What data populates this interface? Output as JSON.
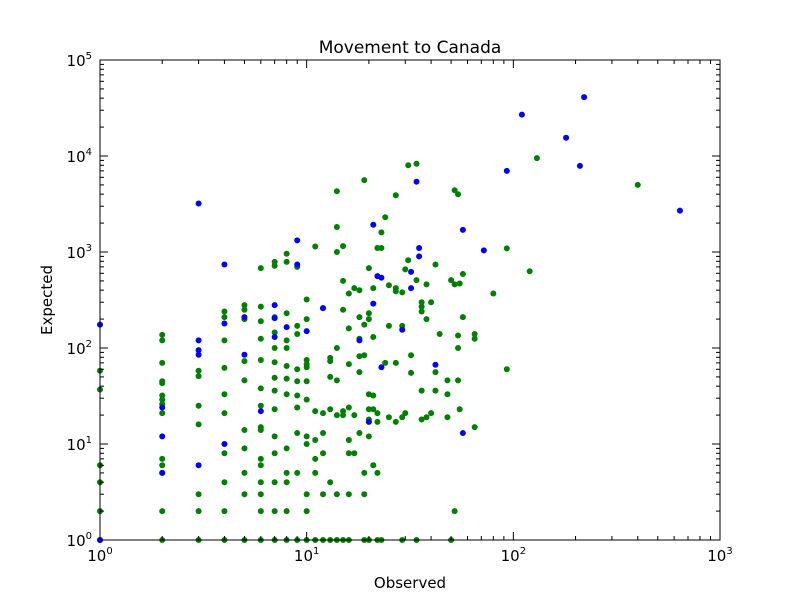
{
  "chart_data": {
    "type": "scatter",
    "title": "Movement to Canada",
    "xlabel": "Observed",
    "ylabel": "Expected",
    "xscale": "log",
    "yscale": "log",
    "xlim": [
      1,
      1000
    ],
    "ylim": [
      1,
      100000
    ],
    "grid": false,
    "legend": "none",
    "x_ticks": [
      {
        "value": 1,
        "base": "10",
        "exp": "0"
      },
      {
        "value": 10,
        "base": "10",
        "exp": "1"
      },
      {
        "value": 100,
        "base": "10",
        "exp": "2"
      },
      {
        "value": 1000,
        "base": "10",
        "exp": "3"
      }
    ],
    "y_ticks": [
      {
        "value": 1,
        "base": "10",
        "exp": "0"
      },
      {
        "value": 10,
        "base": "10",
        "exp": "1"
      },
      {
        "value": 100,
        "base": "10",
        "exp": "2"
      },
      {
        "value": 1000,
        "base": "10",
        "exp": "3"
      },
      {
        "value": 10000,
        "base": "10",
        "exp": "4"
      },
      {
        "value": 100000,
        "base": "10",
        "exp": "5"
      }
    ],
    "series": [
      {
        "color": "#008000",
        "points": [
          [
            1,
            1
          ],
          [
            1,
            2
          ],
          [
            1,
            4
          ],
          [
            1,
            6
          ],
          [
            1,
            37
          ],
          [
            1,
            58
          ],
          [
            2,
            1
          ],
          [
            2,
            2
          ],
          [
            2,
            5
          ],
          [
            2,
            6
          ],
          [
            2,
            7
          ],
          [
            2,
            21
          ],
          [
            2,
            26
          ],
          [
            2,
            29
          ],
          [
            2,
            32
          ],
          [
            2,
            43
          ],
          [
            2,
            45
          ],
          [
            2,
            70
          ],
          [
            2,
            120
          ],
          [
            2,
            137
          ],
          [
            3,
            1
          ],
          [
            3,
            2
          ],
          [
            3,
            3
          ],
          [
            3,
            16
          ],
          [
            3,
            25
          ],
          [
            3,
            51
          ],
          [
            3,
            58
          ],
          [
            4,
            1
          ],
          [
            4,
            2
          ],
          [
            4,
            4
          ],
          [
            4,
            8
          ],
          [
            4,
            21
          ],
          [
            4,
            33
          ],
          [
            4,
            62
          ],
          [
            4,
            120
          ],
          [
            4,
            210
          ],
          [
            4,
            240
          ],
          [
            5,
            1
          ],
          [
            5,
            3
          ],
          [
            5,
            5
          ],
          [
            5,
            9
          ],
          [
            5,
            14
          ],
          [
            5,
            46
          ],
          [
            5,
            73
          ],
          [
            5,
            200
          ],
          [
            5,
            250
          ],
          [
            5,
            280
          ],
          [
            6,
            1
          ],
          [
            6,
            2
          ],
          [
            6,
            3
          ],
          [
            6,
            4
          ],
          [
            6,
            6
          ],
          [
            6,
            7
          ],
          [
            6,
            14
          ],
          [
            6,
            15
          ],
          [
            6,
            25
          ],
          [
            6,
            38
          ],
          [
            6,
            75
          ],
          [
            6,
            125
          ],
          [
            6,
            190
          ],
          [
            6,
            270
          ],
          [
            6,
            680
          ],
          [
            7,
            1
          ],
          [
            7,
            2
          ],
          [
            7,
            4
          ],
          [
            7,
            8
          ],
          [
            7,
            12
          ],
          [
            7,
            23
          ],
          [
            7,
            36
          ],
          [
            7,
            49
          ],
          [
            7,
            71
          ],
          [
            7,
            100
          ],
          [
            7,
            145
          ],
          [
            7,
            210
          ],
          [
            7,
            720
          ],
          [
            7,
            790
          ],
          [
            8,
            1
          ],
          [
            8,
            2
          ],
          [
            8,
            4
          ],
          [
            8,
            5
          ],
          [
            8,
            9
          ],
          [
            8,
            33
          ],
          [
            8,
            48
          ],
          [
            8,
            65
          ],
          [
            8,
            100
          ],
          [
            8,
            120
          ],
          [
            8,
            230
          ],
          [
            8,
            790
          ],
          [
            8,
            960
          ],
          [
            9,
            1
          ],
          [
            9,
            5
          ],
          [
            9,
            13
          ],
          [
            9,
            24
          ],
          [
            9,
            32
          ],
          [
            9,
            45
          ],
          [
            9,
            60
          ],
          [
            9,
            140
          ],
          [
            9,
            170
          ],
          [
            9,
            700
          ],
          [
            10,
            1
          ],
          [
            10,
            2
          ],
          [
            10,
            3
          ],
          [
            10,
            10
          ],
          [
            10,
            12
          ],
          [
            10,
            29
          ],
          [
            10,
            45
          ],
          [
            10,
            63
          ],
          [
            10,
            68
          ],
          [
            10,
            75
          ],
          [
            10,
            200
          ],
          [
            10,
            320
          ],
          [
            11,
            1
          ],
          [
            11,
            5
          ],
          [
            11,
            7
          ],
          [
            11,
            11
          ],
          [
            11,
            22
          ],
          [
            11,
            1140
          ],
          [
            12,
            1
          ],
          [
            12,
            3
          ],
          [
            12,
            8
          ],
          [
            12,
            13
          ],
          [
            12,
            21
          ],
          [
            12,
            260
          ],
          [
            13,
            1
          ],
          [
            13,
            4
          ],
          [
            13,
            23
          ],
          [
            13,
            50
          ],
          [
            13,
            73
          ],
          [
            13,
            79
          ],
          [
            14,
            1
          ],
          [
            14,
            3
          ],
          [
            14,
            20
          ],
          [
            14,
            46
          ],
          [
            14,
            100
          ],
          [
            14,
            1000
          ],
          [
            14,
            1820
          ],
          [
            14,
            4300
          ],
          [
            15,
            1
          ],
          [
            15,
            20
          ],
          [
            15,
            22
          ],
          [
            15,
            250
          ],
          [
            15,
            500
          ],
          [
            15,
            1150
          ],
          [
            16,
            1
          ],
          [
            16,
            3
          ],
          [
            16,
            8
          ],
          [
            16,
            11
          ],
          [
            16,
            24
          ],
          [
            16,
            68
          ],
          [
            16,
            160
          ],
          [
            16,
            370
          ],
          [
            17,
            8
          ],
          [
            17,
            20
          ],
          [
            17,
            420
          ],
          [
            18,
            13
          ],
          [
            18,
            56
          ],
          [
            18,
            82
          ],
          [
            18,
            125
          ],
          [
            18,
            210
          ],
          [
            18,
            400
          ],
          [
            19,
            1
          ],
          [
            19,
            3
          ],
          [
            19,
            5
          ],
          [
            19,
            84
          ],
          [
            19,
            175
          ],
          [
            19,
            5600
          ],
          [
            20,
            1
          ],
          [
            20,
            12
          ],
          [
            20,
            18
          ],
          [
            20,
            23
          ],
          [
            20,
            33
          ],
          [
            20,
            200
          ],
          [
            20,
            230
          ],
          [
            20,
            680
          ],
          [
            21,
            6
          ],
          [
            21,
            23
          ],
          [
            21,
            32
          ],
          [
            21,
            130
          ],
          [
            21,
            420
          ],
          [
            22,
            1
          ],
          [
            22,
            5
          ],
          [
            22,
            17
          ],
          [
            22,
            21
          ],
          [
            22,
            1100
          ],
          [
            23,
            1
          ],
          [
            23,
            1100
          ],
          [
            23,
            1600
          ],
          [
            24,
            70
          ],
          [
            24,
            2300
          ],
          [
            25,
            19
          ],
          [
            25,
            170
          ],
          [
            25,
            450
          ],
          [
            27,
            3900
          ],
          [
            27,
            420
          ],
          [
            27,
            390
          ],
          [
            27,
            70
          ],
          [
            27,
            17
          ],
          [
            29,
            1
          ],
          [
            29,
            19
          ],
          [
            29,
            170
          ],
          [
            29,
            380
          ],
          [
            30,
            21
          ],
          [
            30,
            660
          ],
          [
            31,
            820
          ],
          [
            31,
            8000
          ],
          [
            32,
            55
          ],
          [
            32,
            84
          ],
          [
            34,
            1
          ],
          [
            34,
            510
          ],
          [
            34,
            8300
          ],
          [
            36,
            18
          ],
          [
            36,
            36
          ],
          [
            36,
            270
          ],
          [
            36,
            240
          ],
          [
            36,
            300
          ],
          [
            38,
            19
          ],
          [
            38,
            200
          ],
          [
            38,
            460
          ],
          [
            40,
            21
          ],
          [
            40,
            300
          ],
          [
            42,
            36
          ],
          [
            42,
            56
          ],
          [
            42,
            740
          ],
          [
            44,
            140
          ],
          [
            48,
            19
          ],
          [
            48,
            33
          ],
          [
            48,
            46
          ],
          [
            50,
            1
          ],
          [
            50,
            510
          ],
          [
            52,
            2
          ],
          [
            52,
            460
          ],
          [
            52,
            4400
          ],
          [
            54,
            46
          ],
          [
            54,
            100
          ],
          [
            54,
            135
          ],
          [
            54,
            4000
          ],
          [
            55,
            23
          ],
          [
            55,
            470
          ],
          [
            57,
            210
          ],
          [
            57,
            590
          ],
          [
            65,
            15
          ],
          [
            65,
            125
          ],
          [
            65,
            140
          ],
          [
            80,
            370
          ],
          [
            93,
            60
          ],
          [
            93,
            1090
          ],
          [
            120,
            630
          ],
          [
            130,
            9500
          ],
          [
            400,
            5000
          ]
        ]
      },
      {
        "color": "#0000ff",
        "points": [
          [
            1,
            1
          ],
          [
            1,
            175
          ],
          [
            2,
            5
          ],
          [
            2,
            12
          ],
          [
            2,
            24
          ],
          [
            3,
            3200
          ],
          [
            3,
            120
          ],
          [
            3,
            85
          ],
          [
            3,
            95
          ],
          [
            3,
            6
          ],
          [
            4,
            740
          ],
          [
            4,
            180
          ],
          [
            4,
            10
          ],
          [
            5,
            85
          ],
          [
            5,
            210
          ],
          [
            6,
            22
          ],
          [
            7,
            280
          ],
          [
            7,
            205
          ],
          [
            7,
            130
          ],
          [
            8,
            165
          ],
          [
            9,
            1320
          ],
          [
            9,
            740
          ],
          [
            10,
            150
          ],
          [
            12,
            260
          ],
          [
            18,
            120
          ],
          [
            20,
            17
          ],
          [
            21,
            1920
          ],
          [
            21,
            290
          ],
          [
            22,
            560
          ],
          [
            23,
            540
          ],
          [
            23,
            63
          ],
          [
            29,
            155
          ],
          [
            32,
            420
          ],
          [
            32,
            620
          ],
          [
            34,
            5400
          ],
          [
            35,
            1100
          ],
          [
            35,
            900
          ],
          [
            42,
            67
          ],
          [
            57,
            1700
          ],
          [
            57,
            13
          ],
          [
            72,
            1040
          ],
          [
            93,
            7000
          ],
          [
            110,
            27000
          ],
          [
            180,
            15500
          ],
          [
            210,
            7900
          ],
          [
            220,
            41000
          ],
          [
            640,
            2700
          ]
        ]
      }
    ]
  }
}
